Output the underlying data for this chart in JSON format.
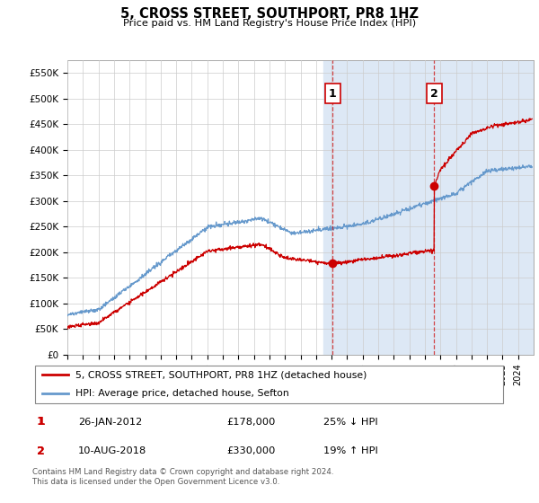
{
  "title": "5, CROSS STREET, SOUTHPORT, PR8 1HZ",
  "subtitle": "Price paid vs. HM Land Registry's House Price Index (HPI)",
  "ylabel_ticks": [
    "£0",
    "£50K",
    "£100K",
    "£150K",
    "£200K",
    "£250K",
    "£300K",
    "£350K",
    "£400K",
    "£450K",
    "£500K",
    "£550K"
  ],
  "ytick_values": [
    0,
    50000,
    100000,
    150000,
    200000,
    250000,
    300000,
    350000,
    400000,
    450000,
    500000,
    550000
  ],
  "ylim": [
    0,
    575000
  ],
  "xlim_start": 1995.0,
  "xlim_end": 2025.0,
  "red_line_color": "#cc0000",
  "blue_line_color": "#6699cc",
  "marker1_date": 2012.07,
  "marker1_value": 178000,
  "marker2_date": 2018.61,
  "marker2_value": 330000,
  "annotation1_label": "1",
  "annotation2_label": "2",
  "legend_red": "5, CROSS STREET, SOUTHPORT, PR8 1HZ (detached house)",
  "legend_blue": "HPI: Average price, detached house, Sefton",
  "table_row1": [
    "1",
    "26-JAN-2012",
    "£178,000",
    "25% ↓ HPI"
  ],
  "table_row2": [
    "2",
    "10-AUG-2018",
    "£330,000",
    "19% ↑ HPI"
  ],
  "footnote": "Contains HM Land Registry data © Crown copyright and database right 2024.\nThis data is licensed under the Open Government Licence v3.0.",
  "background_color": "#ffffff",
  "grid_color": "#cccccc",
  "shaded_region_start": 2011.5,
  "shaded_color": "#dde8f5"
}
